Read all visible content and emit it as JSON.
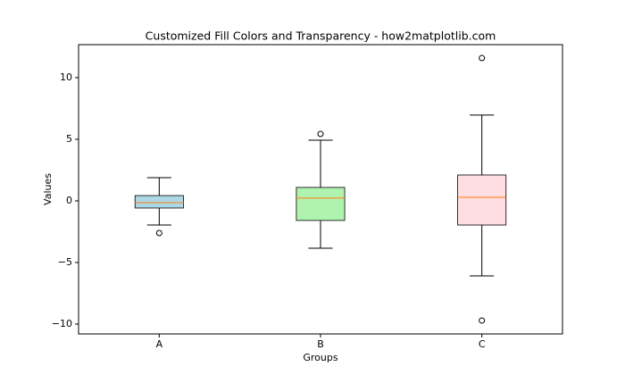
{
  "chart_data": {
    "type": "box",
    "title": "Customized Fill Colors and Transparency - how2matplotlib.com",
    "x_label": "Groups",
    "y_label": "Values",
    "categories": [
      "A",
      "B",
      "C"
    ],
    "boxes": [
      {
        "whislo": -1.96,
        "q1": -0.58,
        "med": -0.15,
        "q3": 0.43,
        "whishi": 1.88,
        "fliers": [
          -2.61
        ],
        "color": "#add8e6"
      },
      {
        "whislo": -3.84,
        "q1": -1.59,
        "med": 0.22,
        "q3": 1.09,
        "whishi": 4.93,
        "fliers": [
          5.43
        ],
        "color": "#b0f2b0"
      },
      {
        "whislo": -6.09,
        "q1": -1.96,
        "med": 0.29,
        "q3": 2.1,
        "whishi": 6.96,
        "fliers": [
          11.59,
          -9.71
        ],
        "color": "#ffdde3"
      }
    ],
    "median_color": "#ff7f0e",
    "ylim": [
      -10.8,
      12.68
    ],
    "yticks": [
      {
        "value": -10,
        "label": "−10"
      },
      {
        "value": -5,
        "label": "−5"
      },
      0,
      5,
      10
    ],
    "grid": false
  }
}
